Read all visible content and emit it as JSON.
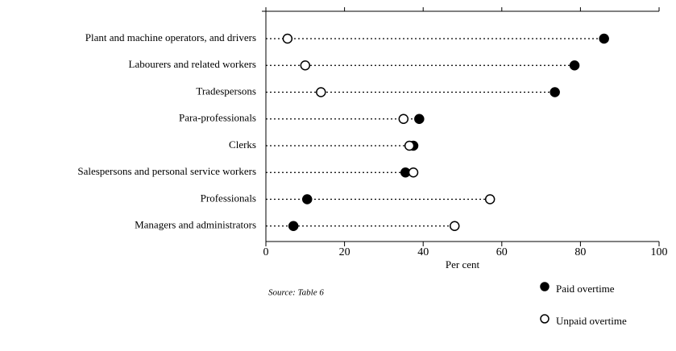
{
  "chart_data": {
    "type": "dot",
    "categories": [
      "Plant and machine operators, and drivers",
      "Labourers and related workers",
      "Tradespersons",
      "Para-professionals",
      "Clerks",
      "Salespersons and personal service workers",
      "Professionals",
      "Managers and administrators"
    ],
    "series": [
      {
        "name": "Paid overtime",
        "color": "#000000",
        "values": [
          86,
          78.5,
          73.5,
          39,
          37.5,
          35.5,
          10.5,
          7
        ]
      },
      {
        "name": "Unpaid overtime",
        "color": "#ffffff",
        "values": [
          5.5,
          10,
          14,
          35,
          36.5,
          37.5,
          57,
          48
        ]
      }
    ],
    "xlabel": "Per cent",
    "xlim": [
      0,
      100
    ],
    "xticks": [
      0,
      20,
      40,
      60,
      80,
      100
    ],
    "source": "Source:  Table 6"
  }
}
